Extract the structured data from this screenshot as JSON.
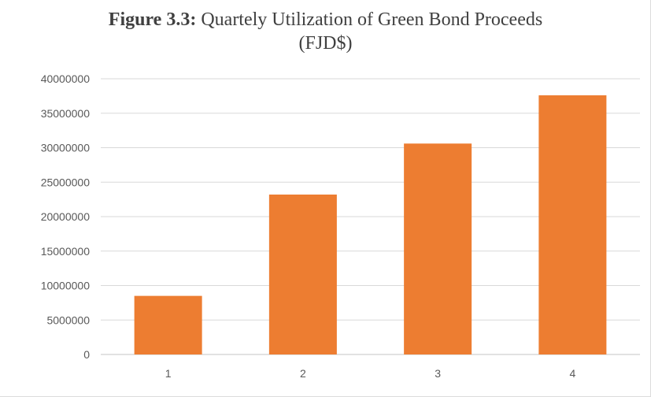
{
  "chart_data": {
    "type": "bar",
    "title_bold": "Figure 3.3:",
    "title_rest": "Quartely Utilization of Green Bond Proceeds",
    "title_line2": "(FJD$)",
    "xlabel": "",
    "ylabel": "",
    "categories": [
      "1",
      "2",
      "3",
      "4"
    ],
    "values": [
      8500000,
      23200000,
      30600000,
      37600000
    ],
    "ylim": [
      0,
      40000000
    ],
    "yticks": [
      0,
      5000000,
      10000000,
      15000000,
      20000000,
      25000000,
      30000000,
      35000000,
      40000000
    ],
    "ytick_labels": [
      "0",
      "5000000",
      "10000000",
      "15000000",
      "20000000",
      "25000000",
      "30000000",
      "35000000",
      "40000000"
    ],
    "grid": true,
    "legend": "none",
    "bar_color": "#ED7D31",
    "grid_color": "#D9D9D9"
  }
}
